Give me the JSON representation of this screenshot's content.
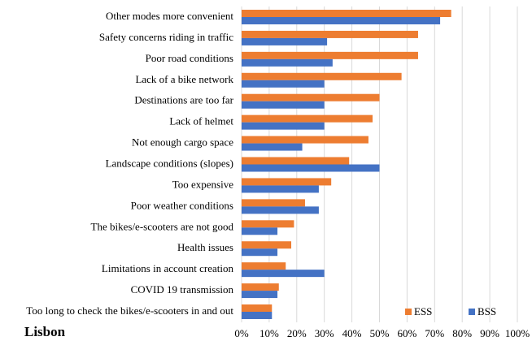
{
  "chart_data": {
    "type": "hbar",
    "subtitle": "Lisbon",
    "categories": [
      "Other modes more convenient",
      "Safety concerns riding in traffic",
      "Poor road conditions",
      "Lack of a bike network",
      "Destinations are too far",
      "Lack of helmet",
      "Not enough cargo space",
      "Landscape conditions (slopes)",
      "Too expensive",
      "Poor weather conditions",
      "The bikes/e-scooters are not good",
      "Health issues",
      "Limitations in account creation",
      "COVID 19 transmission",
      "Too long to check the bikes/e-scooters in and out"
    ],
    "series": [
      {
        "name": "ESS",
        "color": "#ED7D31",
        "values": [
          76,
          64,
          64,
          58,
          50,
          47.5,
          46,
          39,
          32.5,
          23,
          19,
          18,
          16,
          13.5,
          11
        ]
      },
      {
        "name": "BSS",
        "color": "#4472C4",
        "values": [
          72,
          31,
          33,
          30,
          30,
          30,
          22,
          50,
          28,
          28,
          13,
          13,
          30,
          13,
          11
        ]
      }
    ],
    "xlim": [
      0,
      100
    ],
    "xticks": [
      {
        "value": 0,
        "label": "0%"
      },
      {
        "value": 10,
        "label": "10%"
      },
      {
        "value": 20,
        "label": "20%"
      },
      {
        "value": 30,
        "label": "30%"
      },
      {
        "value": 40,
        "label": "40%"
      },
      {
        "value": 50,
        "label": "50%"
      },
      {
        "value": 60,
        "label": "60%"
      },
      {
        "value": 70,
        "label": "70%"
      },
      {
        "value": 80,
        "label": "80%"
      },
      {
        "value": 90,
        "label": "90%"
      },
      {
        "value": 100,
        "label": "100%"
      }
    ],
    "grid": true,
    "legend": "bottom-right"
  }
}
